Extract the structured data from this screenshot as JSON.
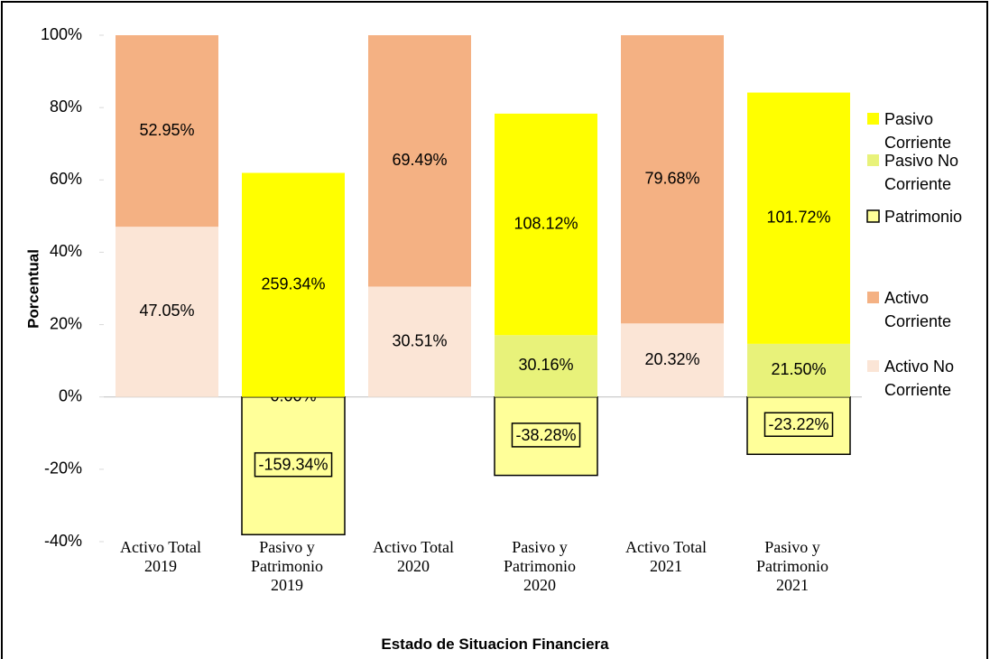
{
  "chart_data": {
    "type": "bar",
    "stacking": "percent",
    "x_label": "Estado de Situacion Financiera",
    "y_label": "Porcentual",
    "categories": [
      "Activo Total 2019",
      "Pasivo y Patrimonio 2019",
      "Activo Total 2020",
      "Pasivo y Patrimonio 2020",
      "Activo Total 2021",
      "Pasivo y Patrimonio 2021"
    ],
    "series": [
      {
        "name": "Pasivo Corriente",
        "color": "#ffff00",
        "values": [
          null,
          259.34,
          null,
          108.12,
          null,
          101.72
        ],
        "value_labels": [
          null,
          "259.34%",
          null,
          "108.12%",
          null,
          "101.72%"
        ]
      },
      {
        "name": "Pasivo No Corriente",
        "color": "#e8f27a",
        "values": [
          null,
          0.0,
          null,
          30.16,
          null,
          21.5
        ],
        "value_labels": [
          null,
          "0.00%",
          null,
          "30.16%",
          null,
          "21.50%"
        ]
      },
      {
        "name": "Patrimonio",
        "color": "#ffff99",
        "border": "#000000",
        "values": [
          null,
          -159.34,
          null,
          -38.28,
          null,
          -23.22
        ],
        "value_labels": [
          null,
          "-159.34%",
          null,
          "-38.28%",
          null,
          "-23.22%"
        ]
      },
      {
        "name": "Activo Corriente",
        "color": "#f4b183",
        "values": [
          52.95,
          null,
          69.49,
          null,
          79.68,
          null
        ],
        "value_labels": [
          "52.95%",
          null,
          "69.49%",
          null,
          "79.68%",
          null
        ]
      },
      {
        "name": "Activo No Corriente",
        "color": "#fbe5d6",
        "values": [
          47.05,
          null,
          30.51,
          null,
          20.32,
          null
        ],
        "value_labels": [
          "47.05%",
          null,
          "30.51%",
          null,
          "20.32%",
          null
        ]
      }
    ],
    "ylim": [
      -40,
      100
    ],
    "yticks": [
      {
        "value": -40,
        "label": "-40%"
      },
      {
        "value": -20,
        "label": "-20%"
      },
      {
        "value": 0,
        "label": "0%"
      },
      {
        "value": 20,
        "label": "20%"
      },
      {
        "value": 40,
        "label": "40%"
      },
      {
        "value": 60,
        "label": "60%"
      },
      {
        "value": 80,
        "label": "80%"
      },
      {
        "value": 100,
        "label": "100%"
      }
    ],
    "legend": "right"
  }
}
